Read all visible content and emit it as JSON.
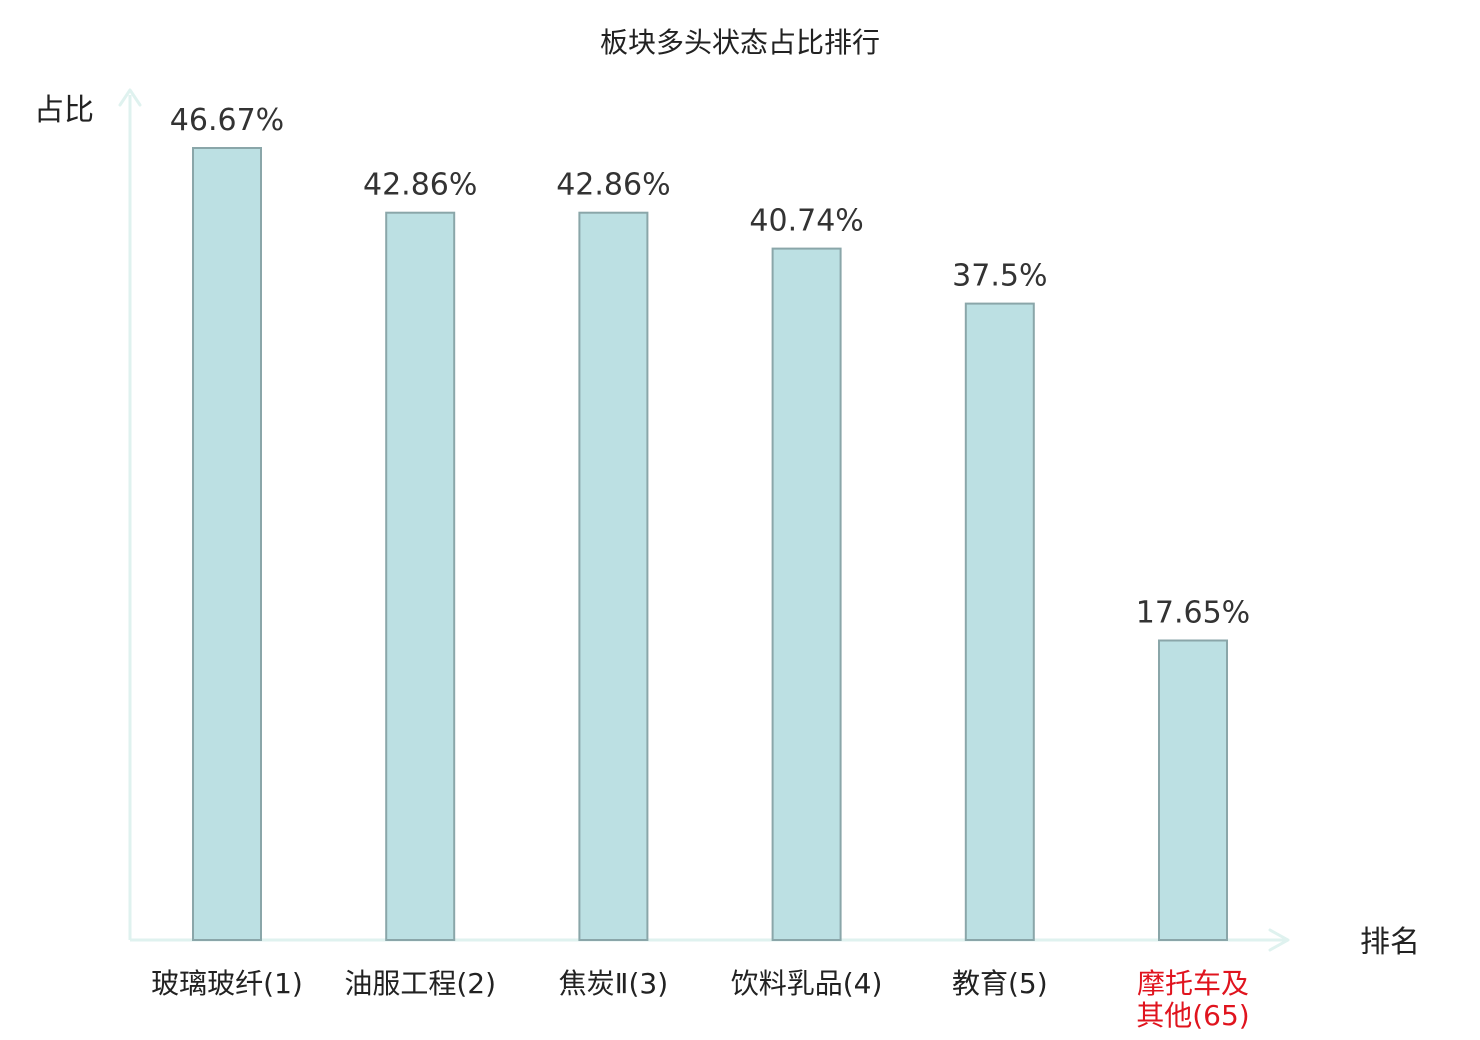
{
  "chart_data": {
    "type": "bar",
    "title": "板块多头状态占比排行",
    "xlabel": "排名",
    "ylabel": "占比",
    "categories": [
      "玻璃玻纤(1)",
      "油服工程(2)",
      "焦炭Ⅱ(3)",
      "饮料乳品(4)",
      "教育(5)",
      "摩托车及其他(65)"
    ],
    "category_lines": [
      [
        "玻璃玻纤(1)"
      ],
      [
        "油服工程(2)"
      ],
      [
        "焦炭Ⅱ(3)"
      ],
      [
        "饮料乳品(4)"
      ],
      [
        "教育(5)"
      ],
      [
        "摩托车及",
        "其他(65)"
      ]
    ],
    "values": [
      46.67,
      42.86,
      42.86,
      40.74,
      37.5,
      17.65
    ],
    "value_labels": [
      "46.67%",
      "42.86%",
      "42.86%",
      "40.74%",
      "37.5%",
      "17.65%"
    ],
    "ylim": [
      0,
      46.67
    ],
    "grid": false,
    "colors": {
      "bar_fill": "#bce0e3",
      "bar_stroke": "#8aa6a9",
      "axis": "#dff2ef",
      "text": "#222222",
      "value_text": "#333333",
      "highlight_text": "#e0141e"
    },
    "highlight_indices": [
      5
    ]
  }
}
